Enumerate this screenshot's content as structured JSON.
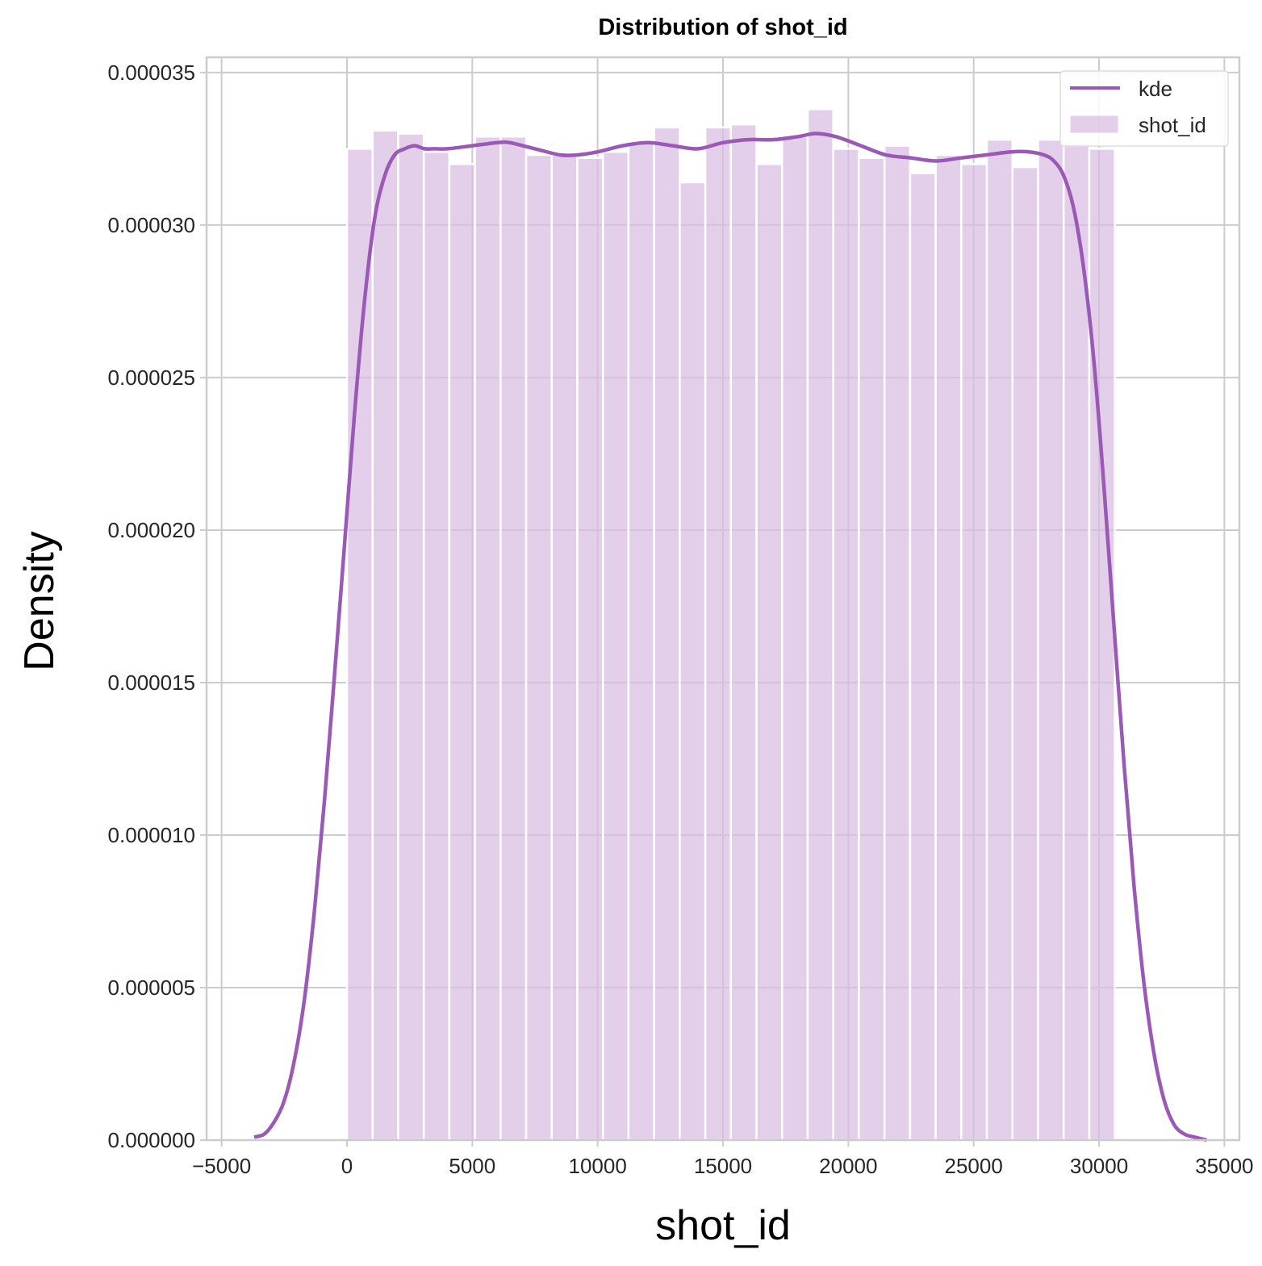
{
  "chart_data": {
    "type": "bar",
    "title": "Distribution of shot_id",
    "xlabel": "shot_id",
    "ylabel": "Density",
    "xlim": [
      -5600,
      35600
    ],
    "ylim": [
      0,
      3.55e-05
    ],
    "x_ticks": [
      -5000,
      0,
      5000,
      10000,
      15000,
      20000,
      25000,
      30000,
      35000
    ],
    "x_tick_labels": [
      "−5000",
      "0",
      "5000",
      "10000",
      "15000",
      "20000",
      "25000",
      "30000",
      "35000"
    ],
    "y_ticks": [
      0,
      5e-06,
      1e-05,
      1.5e-05,
      2e-05,
      2.5e-05,
      3e-05,
      3.5e-05
    ],
    "y_tick_labels": [
      "0.000000",
      "0.000005",
      "0.000010",
      "0.000015",
      "0.000020",
      "0.000025",
      "0.000030",
      "0.000035"
    ],
    "grid": true,
    "legend_position": "top-right",
    "legend": [
      "kde",
      "shot_id"
    ],
    "colors": {
      "bar": "#d8bde2",
      "kde": "#9b59b6",
      "grid": "#cccccc",
      "axis": "#cccccc"
    },
    "histogram": {
      "name": "shot_id",
      "bin_edges": [
        1,
        1022,
        2043,
        3064,
        4085,
        5106,
        6127,
        7148,
        8169,
        9190,
        10211,
        11232,
        12253,
        13274,
        14295,
        15316,
        16337,
        17358,
        18379,
        19400,
        20421,
        21442,
        22463,
        23484,
        24505,
        25526,
        26547,
        27568,
        28589,
        29610,
        30631
      ],
      "values": [
        3.25e-05,
        3.31e-05,
        3.3e-05,
        3.24e-05,
        3.2e-05,
        3.29e-05,
        3.29e-05,
        3.23e-05,
        3.23e-05,
        3.22e-05,
        3.24e-05,
        3.27e-05,
        3.32e-05,
        3.14e-05,
        3.32e-05,
        3.33e-05,
        3.2e-05,
        3.29e-05,
        3.38e-05,
        3.25e-05,
        3.22e-05,
        3.26e-05,
        3.17e-05,
        3.23e-05,
        3.2e-05,
        3.28e-05,
        3.19e-05,
        3.28e-05,
        3.27e-05,
        3.25e-05
      ]
    },
    "kde": {
      "name": "kde",
      "x": [
        -3700,
        -3300,
        -2900,
        -2500,
        -2100,
        -1700,
        -1300,
        -900,
        -500,
        -100,
        300,
        700,
        1100,
        1500,
        1900,
        2300,
        2700,
        3100,
        3500,
        4000,
        5000,
        6000,
        6500,
        7500,
        8500,
        9200,
        10000,
        11000,
        12000,
        13000,
        14000,
        15000,
        16000,
        17000,
        18000,
        18700,
        19500,
        20500,
        21500,
        22500,
        23500,
        24500,
        25500,
        26500,
        27200,
        27800,
        28200,
        28600,
        29000,
        29400,
        29800,
        30200,
        30600,
        31000,
        31400,
        31800,
        32200,
        32600,
        33000,
        33400,
        33800,
        34300
      ],
      "y": [
        1e-07,
        2e-07,
        6e-07,
        1.3e-06,
        2.6e-06,
        4.6e-06,
        7.5e-06,
        1.11e-05,
        1.52e-05,
        1.95e-05,
        2.38e-05,
        2.75e-05,
        3.02e-05,
        3.16e-05,
        3.23e-05,
        3.25e-05,
        3.26e-05,
        3.25e-05,
        3.25e-05,
        3.25e-05,
        3.26e-05,
        3.27e-05,
        3.27e-05,
        3.25e-05,
        3.23e-05,
        3.23e-05,
        3.24e-05,
        3.26e-05,
        3.27e-05,
        3.26e-05,
        3.25e-05,
        3.27e-05,
        3.28e-05,
        3.28e-05,
        3.29e-05,
        3.3e-05,
        3.29e-05,
        3.26e-05,
        3.23e-05,
        3.22e-05,
        3.21e-05,
        3.22e-05,
        3.23e-05,
        3.24e-05,
        3.24e-05,
        3.23e-05,
        3.21e-05,
        3.16e-05,
        3.05e-05,
        2.85e-05,
        2.55e-05,
        2.14e-05,
        1.68e-05,
        1.23e-05,
        8.3e-06,
        5.1e-06,
        2.8e-06,
        1.3e-06,
        5e-07,
        2e-07,
        1e-07,
        0.0
      ]
    }
  }
}
